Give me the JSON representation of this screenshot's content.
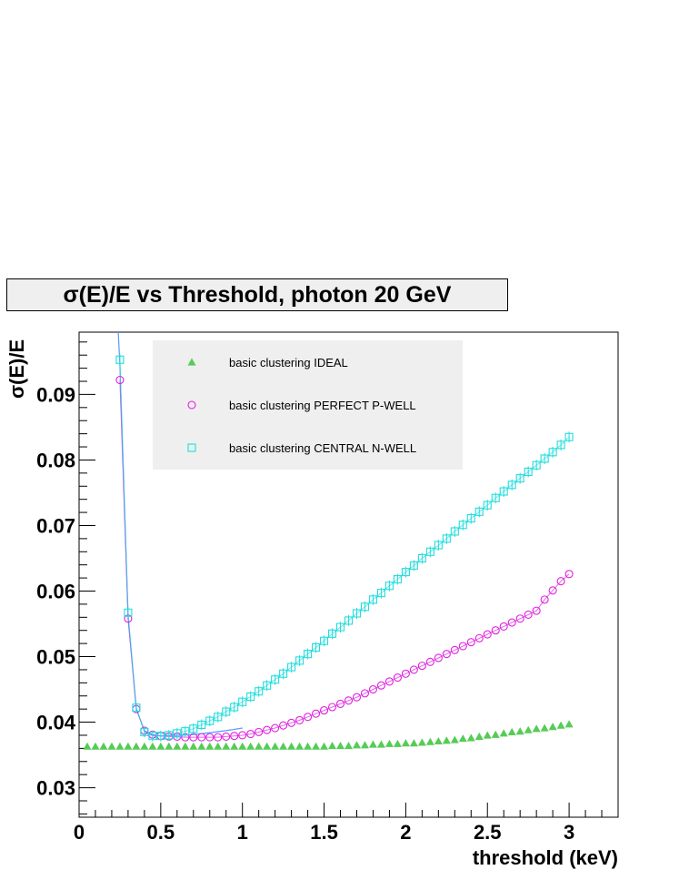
{
  "chart_data": {
    "type": "scatter",
    "title": "σ(E)/E vs Threshold, photon 20 GeV",
    "xlabel": "threshold (keV)",
    "ylabel": "σ(E)/E",
    "xlim": [
      0,
      3.3
    ],
    "ylim": [
      0.0255,
      0.0995
    ],
    "x_ticks": [
      "0",
      "0.5",
      "1",
      "1.5",
      "2",
      "2.5",
      "3"
    ],
    "y_ticks": [
      "0.03",
      "0.04",
      "0.05",
      "0.06",
      "0.07",
      "0.08",
      "0.09"
    ],
    "legend": {
      "placement": "top-left"
    },
    "series": [
      {
        "name": "basic clustering IDEAL",
        "marker": "triangle",
        "color": "#55cc55",
        "x": [
          0.05,
          0.1,
          0.15,
          0.2,
          0.25,
          0.3,
          0.35,
          0.4,
          0.45,
          0.5,
          0.55,
          0.6,
          0.65,
          0.7,
          0.75,
          0.8,
          0.85,
          0.9,
          0.95,
          1.0,
          1.05,
          1.1,
          1.15,
          1.2,
          1.25,
          1.3,
          1.35,
          1.4,
          1.45,
          1.5,
          1.55,
          1.6,
          1.65,
          1.7,
          1.75,
          1.8,
          1.85,
          1.9,
          1.95,
          2.0,
          2.05,
          2.1,
          2.15,
          2.2,
          2.25,
          2.3,
          2.35,
          2.4,
          2.45,
          2.5,
          2.55,
          2.6,
          2.65,
          2.7,
          2.75,
          2.8,
          2.85,
          2.9,
          2.95,
          3.0
        ],
        "values": [
          0.0363,
          0.0363,
          0.0363,
          0.0363,
          0.0363,
          0.0363,
          0.0363,
          0.0363,
          0.0363,
          0.0363,
          0.0363,
          0.0363,
          0.0363,
          0.0363,
          0.0363,
          0.0363,
          0.0363,
          0.0363,
          0.0363,
          0.0363,
          0.0363,
          0.0363,
          0.0363,
          0.0363,
          0.0363,
          0.0363,
          0.0363,
          0.0363,
          0.0363,
          0.0363,
          0.0364,
          0.0364,
          0.0364,
          0.0365,
          0.0365,
          0.0366,
          0.0366,
          0.0367,
          0.0367,
          0.0368,
          0.0368,
          0.0369,
          0.037,
          0.0371,
          0.0372,
          0.0373,
          0.0375,
          0.0376,
          0.0378,
          0.038,
          0.0381,
          0.0383,
          0.0385,
          0.0386,
          0.0388,
          0.039,
          0.0391,
          0.0393,
          0.0395,
          0.0397
        ]
      },
      {
        "name": "basic clustering PERFECT P-WELL",
        "marker": "circle",
        "color": "#e020e0",
        "x": [
          0.25,
          0.3,
          0.35,
          0.4,
          0.45,
          0.5,
          0.55,
          0.6,
          0.65,
          0.7,
          0.75,
          0.8,
          0.85,
          0.9,
          0.95,
          1.0,
          1.05,
          1.1,
          1.15,
          1.2,
          1.25,
          1.3,
          1.35,
          1.4,
          1.45,
          1.5,
          1.55,
          1.6,
          1.65,
          1.7,
          1.75,
          1.8,
          1.85,
          1.9,
          1.95,
          2.0,
          2.05,
          2.1,
          2.15,
          2.2,
          2.25,
          2.3,
          2.35,
          2.4,
          2.45,
          2.5,
          2.55,
          2.6,
          2.65,
          2.7,
          2.75,
          2.8,
          2.85,
          2.9,
          2.95,
          3.0
        ],
        "values": [
          0.0922,
          0.0558,
          0.042,
          0.0387,
          0.0381,
          0.0379,
          0.0378,
          0.0378,
          0.0377,
          0.0377,
          0.0377,
          0.0377,
          0.0377,
          0.0378,
          0.0379,
          0.038,
          0.0382,
          0.0385,
          0.0388,
          0.0391,
          0.0395,
          0.0399,
          0.0403,
          0.0408,
          0.0413,
          0.0418,
          0.0423,
          0.0428,
          0.0433,
          0.0438,
          0.0444,
          0.045,
          0.0456,
          0.0462,
          0.0468,
          0.0474,
          0.048,
          0.0486,
          0.0492,
          0.0498,
          0.0504,
          0.051,
          0.0516,
          0.0522,
          0.0528,
          0.0534,
          0.054,
          0.0546,
          0.0552,
          0.0558,
          0.0564,
          0.057,
          0.0587,
          0.0601,
          0.0615,
          0.0626
        ]
      },
      {
        "name": "basic clustering CENTRAL N-WELL",
        "marker": "square",
        "color": "#22dddd",
        "x": [
          0.25,
          0.3,
          0.35,
          0.4,
          0.45,
          0.5,
          0.55,
          0.6,
          0.65,
          0.7,
          0.75,
          0.8,
          0.85,
          0.9,
          0.95,
          1.0,
          1.05,
          1.1,
          1.15,
          1.2,
          1.25,
          1.3,
          1.35,
          1.4,
          1.45,
          1.5,
          1.55,
          1.6,
          1.65,
          1.7,
          1.75,
          1.8,
          1.85,
          1.9,
          1.95,
          2.0,
          2.05,
          2.1,
          2.15,
          2.2,
          2.25,
          2.3,
          2.35,
          2.4,
          2.45,
          2.5,
          2.55,
          2.6,
          2.65,
          2.7,
          2.75,
          2.8,
          2.85,
          2.9,
          2.95,
          3.0
        ],
        "values": [
          0.0953,
          0.0567,
          0.0422,
          0.0385,
          0.0379,
          0.0379,
          0.038,
          0.0383,
          0.0386,
          0.039,
          0.0396,
          0.0402,
          0.0408,
          0.0416,
          0.0423,
          0.0431,
          0.0439,
          0.0447,
          0.0456,
          0.0465,
          0.0474,
          0.0484,
          0.0494,
          0.0504,
          0.0514,
          0.0524,
          0.0535,
          0.0545,
          0.0555,
          0.0566,
          0.0576,
          0.0587,
          0.0597,
          0.0608,
          0.0618,
          0.0629,
          0.0639,
          0.065,
          0.066,
          0.067,
          0.068,
          0.0691,
          0.0701,
          0.0711,
          0.0721,
          0.0731,
          0.0742,
          0.0752,
          0.0762,
          0.0772,
          0.0782,
          0.0792,
          0.0802,
          0.0812,
          0.0823,
          0.0835
        ]
      }
    ],
    "fit_curve": {
      "x": [
        0.24,
        0.25,
        0.3,
        0.35,
        0.4,
        0.45,
        0.5,
        0.6,
        0.7,
        0.8,
        0.9,
        1.0
      ],
      "values": [
        0.0995,
        0.0945,
        0.0562,
        0.0421,
        0.0386,
        0.038,
        0.0379,
        0.038,
        0.0381,
        0.0384,
        0.0387,
        0.0391
      ],
      "color": "#5599ff"
    }
  }
}
